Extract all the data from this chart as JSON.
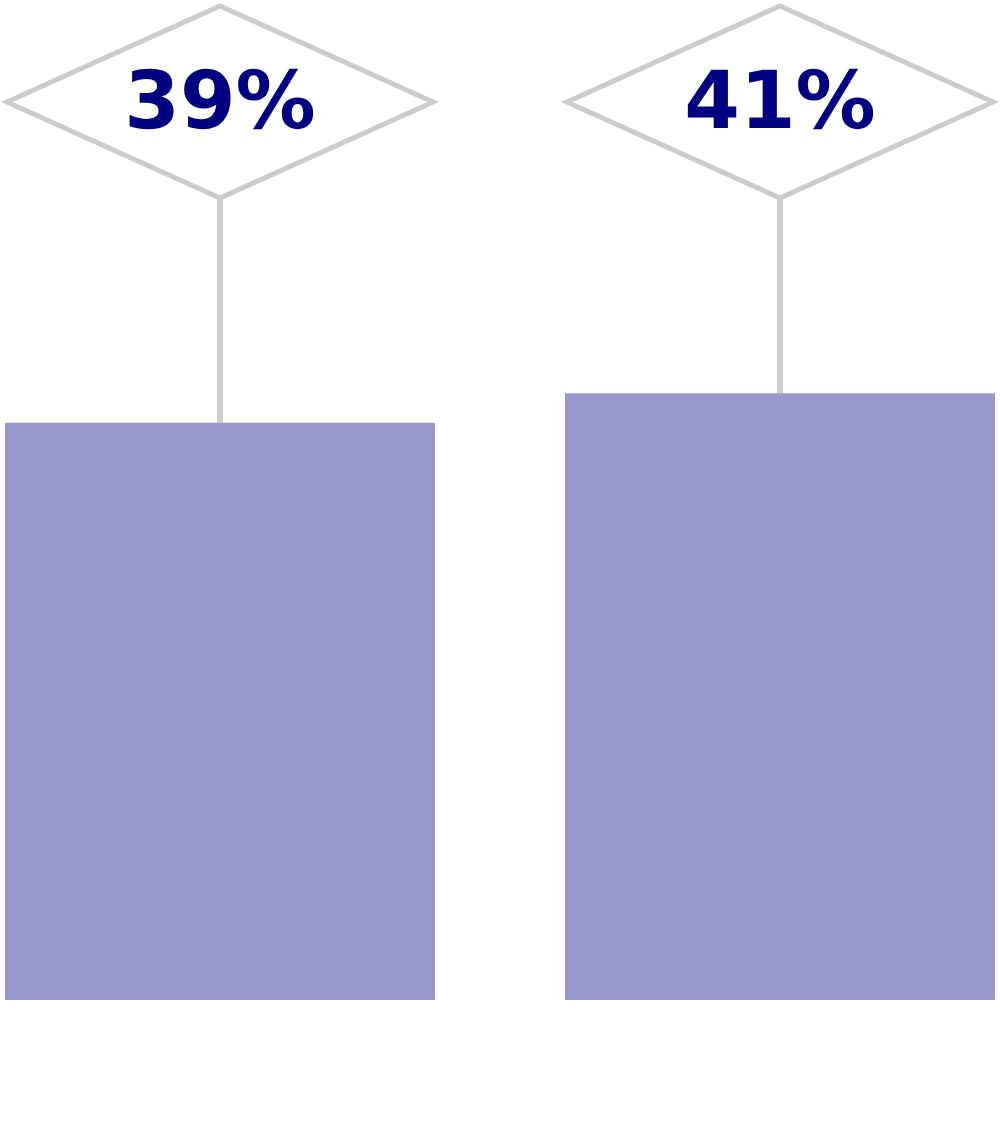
{
  "chart_data": {
    "type": "bar",
    "categories": [
      null,
      null
    ],
    "values": [
      39,
      41
    ],
    "color": "#999acb",
    "value_labels": [
      "39%",
      "41%"
    ],
    "tick_labels": false
  }
}
